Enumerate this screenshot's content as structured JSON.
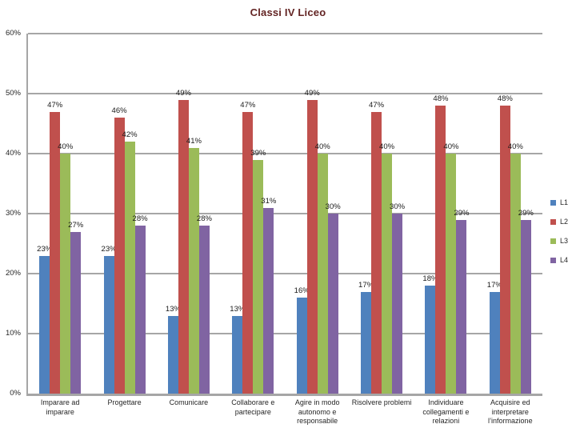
{
  "title": "Classi IV Liceo",
  "colors": {
    "series_l1": "#4F81BD",
    "series_l2": "#C0504D",
    "series_l3": "#9BBB59",
    "series_l4": "#8064A2",
    "gridline": "#A6A6A6",
    "title_text": "#632423",
    "label_text": "#262626"
  },
  "chart_data": {
    "type": "bar",
    "title": "Classi IV Liceo",
    "categories": [
      "Imparare ad imparare",
      "Progettare",
      "Comunicare",
      "Collaborare e partecipare",
      "Agire in modo autonomo e responsabile",
      "Risolvere problemi",
      "Individuare collegamenti e relazioni",
      "Acquisire ed interpretare l’informazione"
    ],
    "series": [
      {
        "name": "L1",
        "color": "#4F81BD",
        "values": [
          23,
          23,
          13,
          13,
          16,
          17,
          18,
          17
        ]
      },
      {
        "name": "L2",
        "color": "#C0504D",
        "values": [
          47,
          46,
          49,
          47,
          49,
          47,
          48,
          48
        ]
      },
      {
        "name": "L3",
        "color": "#9BBB59",
        "values": [
          40,
          42,
          41,
          39,
          40,
          40,
          40,
          40
        ]
      },
      {
        "name": "L4",
        "color": "#8064A2",
        "values": [
          27,
          28,
          28,
          31,
          30,
          30,
          29,
          29
        ]
      }
    ],
    "xlabel": "",
    "ylabel": "",
    "ylim": [
      0,
      60
    ],
    "y_ticks": [
      "0%",
      "10%",
      "20%",
      "30%",
      "40%",
      "50%",
      "60%"
    ],
    "grid": true,
    "legend_position": "right",
    "data_labels": true,
    "label_suffix": "%"
  }
}
